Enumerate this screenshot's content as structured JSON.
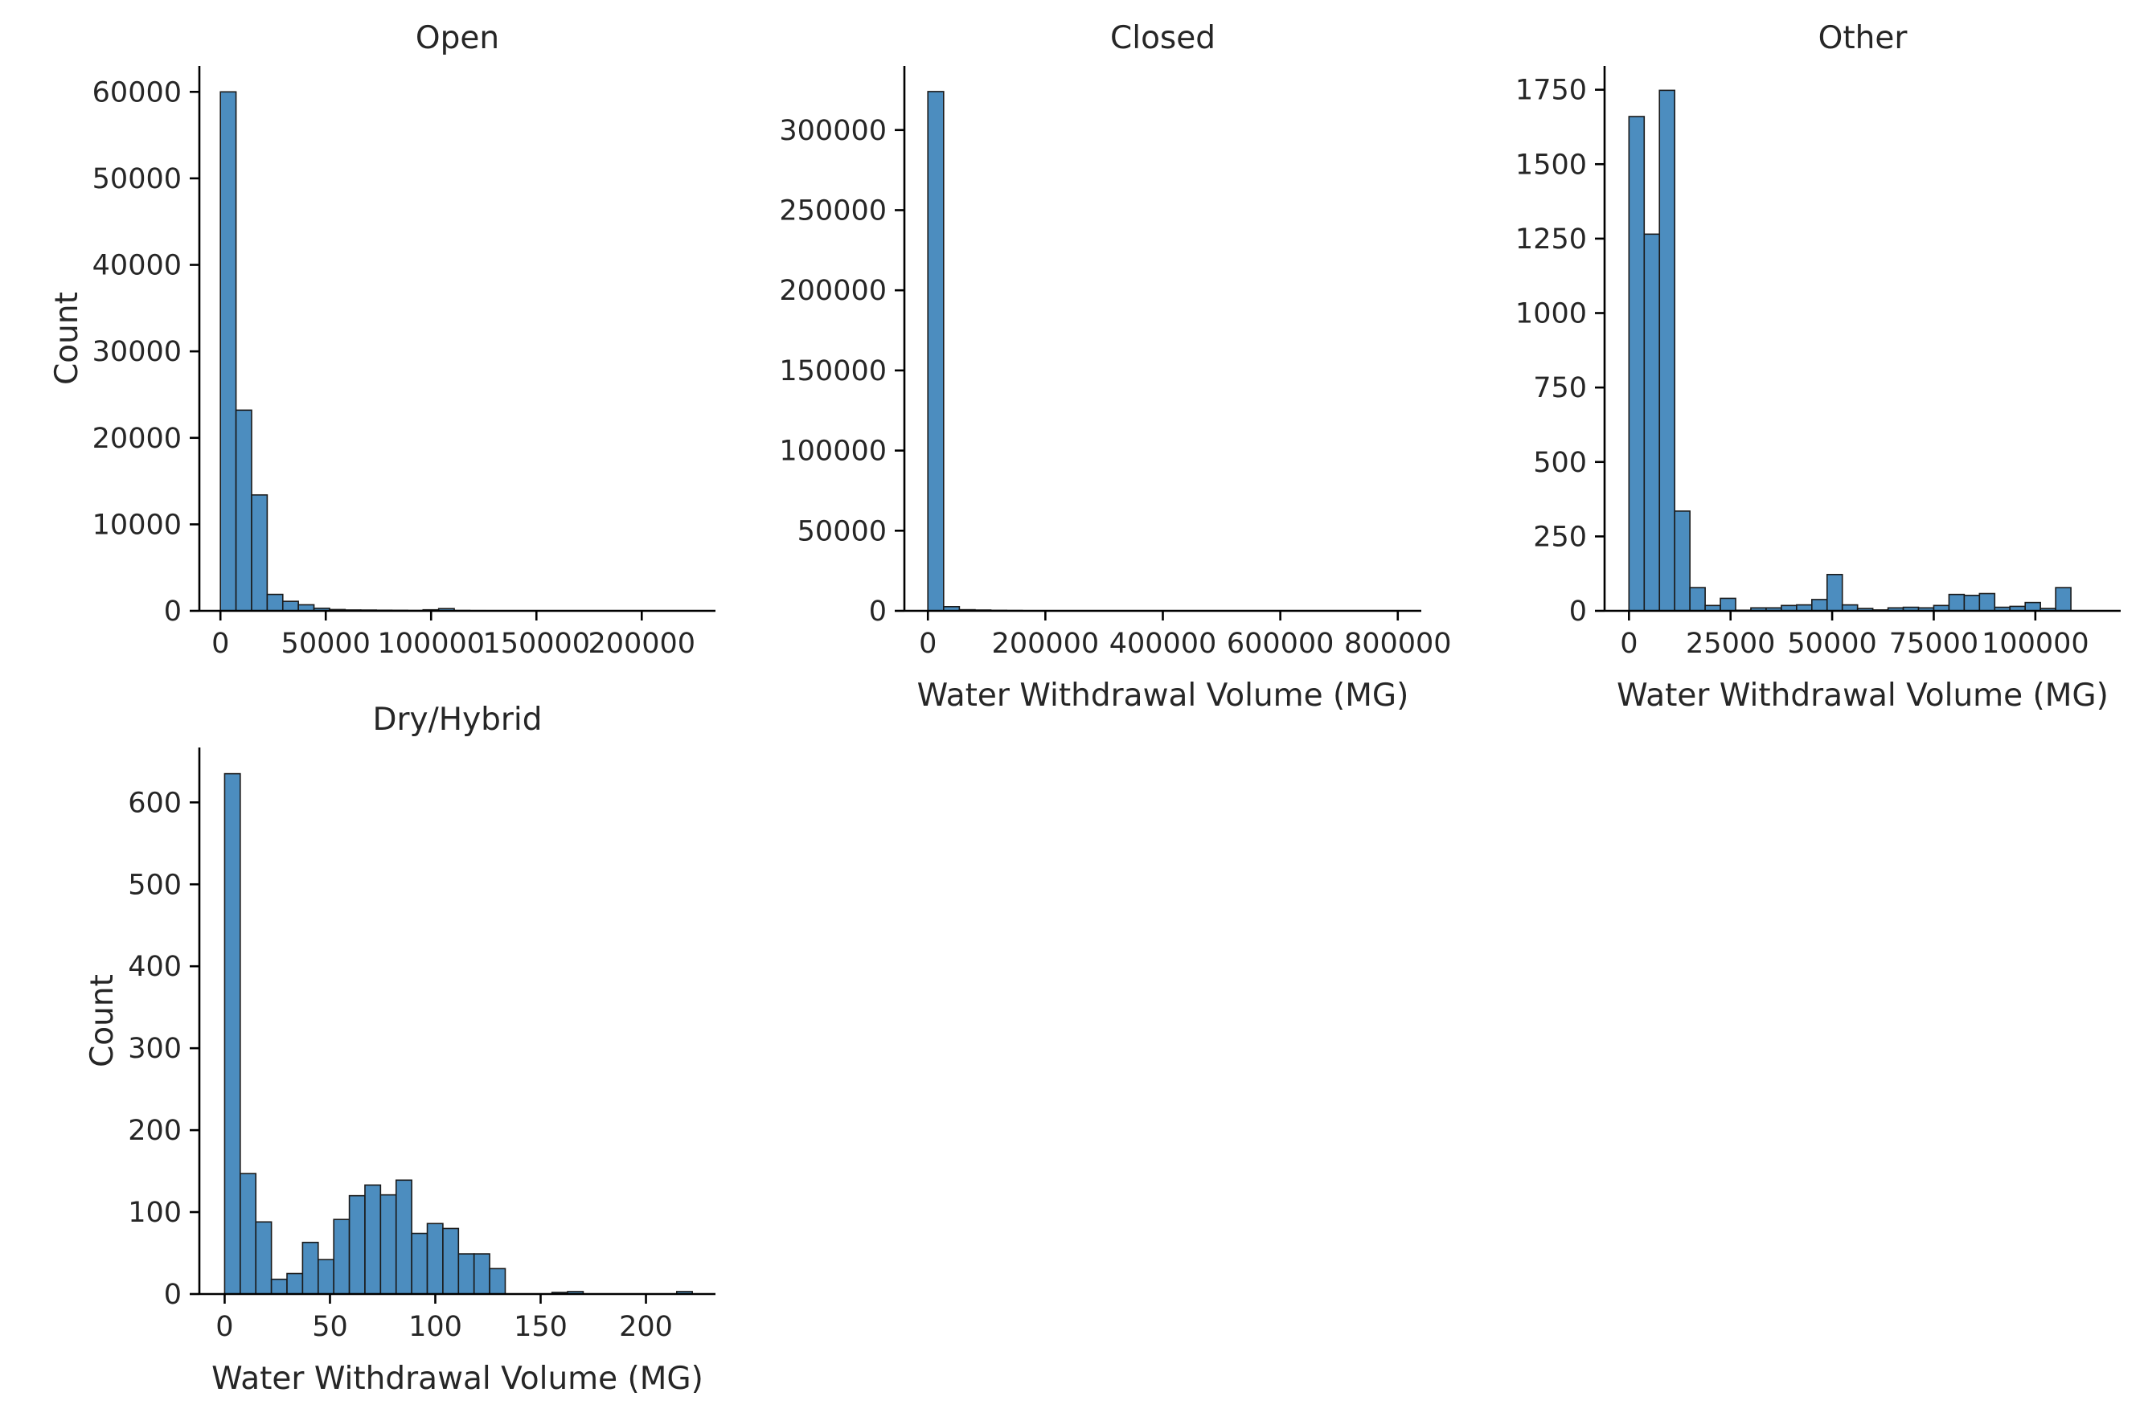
{
  "figure": {
    "bar_color": "#4c8dbf",
    "bar_edge_color": "#1a1a1a",
    "background": "#ffffff"
  },
  "chart_data": [
    {
      "type": "bar",
      "kind": "histogram",
      "title": "Open",
      "xlabel": "",
      "ylabel": "Count",
      "xlim": [
        -10000,
        235000
      ],
      "ylim": [
        0,
        63000
      ],
      "xticks": [
        0,
        50000,
        100000,
        150000,
        200000
      ],
      "xtick_labels": [
        "0",
        "50000",
        "100000",
        "150000",
        "200000"
      ],
      "yticks": [
        0,
        10000,
        20000,
        30000,
        40000,
        50000,
        60000
      ],
      "ytick_labels": [
        "0",
        "10000",
        "20000",
        "30000",
        "40000",
        "50000",
        "60000"
      ],
      "bin_width": 7400,
      "bin_start": 0,
      "values": [
        60000,
        23200,
        13400,
        1900,
        1100,
        700,
        300,
        150,
        100,
        90,
        70,
        60,
        40,
        120,
        260,
        40,
        20,
        15,
        10,
        10,
        10,
        8,
        8,
        6,
        5,
        5,
        5,
        4,
        3,
        3
      ]
    },
    {
      "type": "bar",
      "kind": "histogram",
      "title": "Closed",
      "xlabel": "Water Withdrawal Volume (MG)",
      "ylabel": "",
      "xlim": [
        -40000,
        840000
      ],
      "ylim": [
        0,
        340000
      ],
      "xticks": [
        0,
        200000,
        400000,
        600000,
        800000
      ],
      "xtick_labels": [
        "0",
        "200000",
        "400000",
        "600000",
        "800000"
      ],
      "yticks": [
        0,
        50000,
        100000,
        150000,
        200000,
        250000,
        300000
      ],
      "ytick_labels": [
        "0",
        "50000",
        "100000",
        "150000",
        "200000",
        "250000",
        "300000"
      ],
      "bin_width": 26800,
      "bin_start": 0,
      "values": [
        324000,
        2600,
        700,
        500,
        300,
        200,
        100,
        80,
        60,
        40,
        30,
        20,
        20,
        10,
        10,
        10,
        8,
        6,
        5,
        5,
        4,
        3,
        3,
        2,
        2,
        2,
        1,
        1,
        1,
        1
      ]
    },
    {
      "type": "bar",
      "kind": "histogram",
      "title": "Other",
      "xlabel": "Water Withdrawal Volume (MG)",
      "ylabel": "",
      "xlim": [
        -6000,
        121000
      ],
      "ylim": [
        0,
        1830
      ],
      "xticks": [
        0,
        25000,
        50000,
        75000,
        100000
      ],
      "xtick_labels": [
        "0",
        "25000",
        "50000",
        "75000",
        "100000"
      ],
      "yticks": [
        0,
        250,
        500,
        750,
        1000,
        1250,
        1500,
        1750
      ],
      "ytick_labels": [
        "0",
        "250",
        "500",
        "750",
        "1000",
        "1250",
        "1500",
        "1750"
      ],
      "bin_width": 3750,
      "bin_start": 0,
      "values": [
        1660,
        1265,
        1748,
        335,
        78,
        18,
        42,
        2,
        10,
        10,
        18,
        20,
        38,
        122,
        20,
        8,
        3,
        10,
        12,
        10,
        18,
        55,
        52,
        58,
        12,
        15,
        28,
        8,
        78
      ]
    },
    {
      "type": "bar",
      "kind": "histogram",
      "title": "Dry/Hybrid",
      "xlabel": "Water Withdrawal Volume (MG)",
      "ylabel": "Count",
      "xlim": [
        -12,
        233
      ],
      "ylim": [
        0,
        667
      ],
      "xticks": [
        0,
        50,
        100,
        150,
        200
      ],
      "xtick_labels": [
        "0",
        "50",
        "100",
        "150",
        "200"
      ],
      "yticks": [
        0,
        100,
        200,
        300,
        400,
        500,
        600
      ],
      "ytick_labels": [
        "0",
        "100",
        "200",
        "300",
        "400",
        "500",
        "600"
      ],
      "bin_width": 7.4,
      "bin_start": 0,
      "values": [
        635,
        147,
        88,
        18,
        25,
        63,
        42,
        91,
        120,
        133,
        121,
        139,
        74,
        86,
        80,
        49,
        49,
        31,
        0,
        0,
        0,
        2,
        3,
        0,
        0,
        0,
        0,
        0,
        0,
        3
      ]
    }
  ]
}
